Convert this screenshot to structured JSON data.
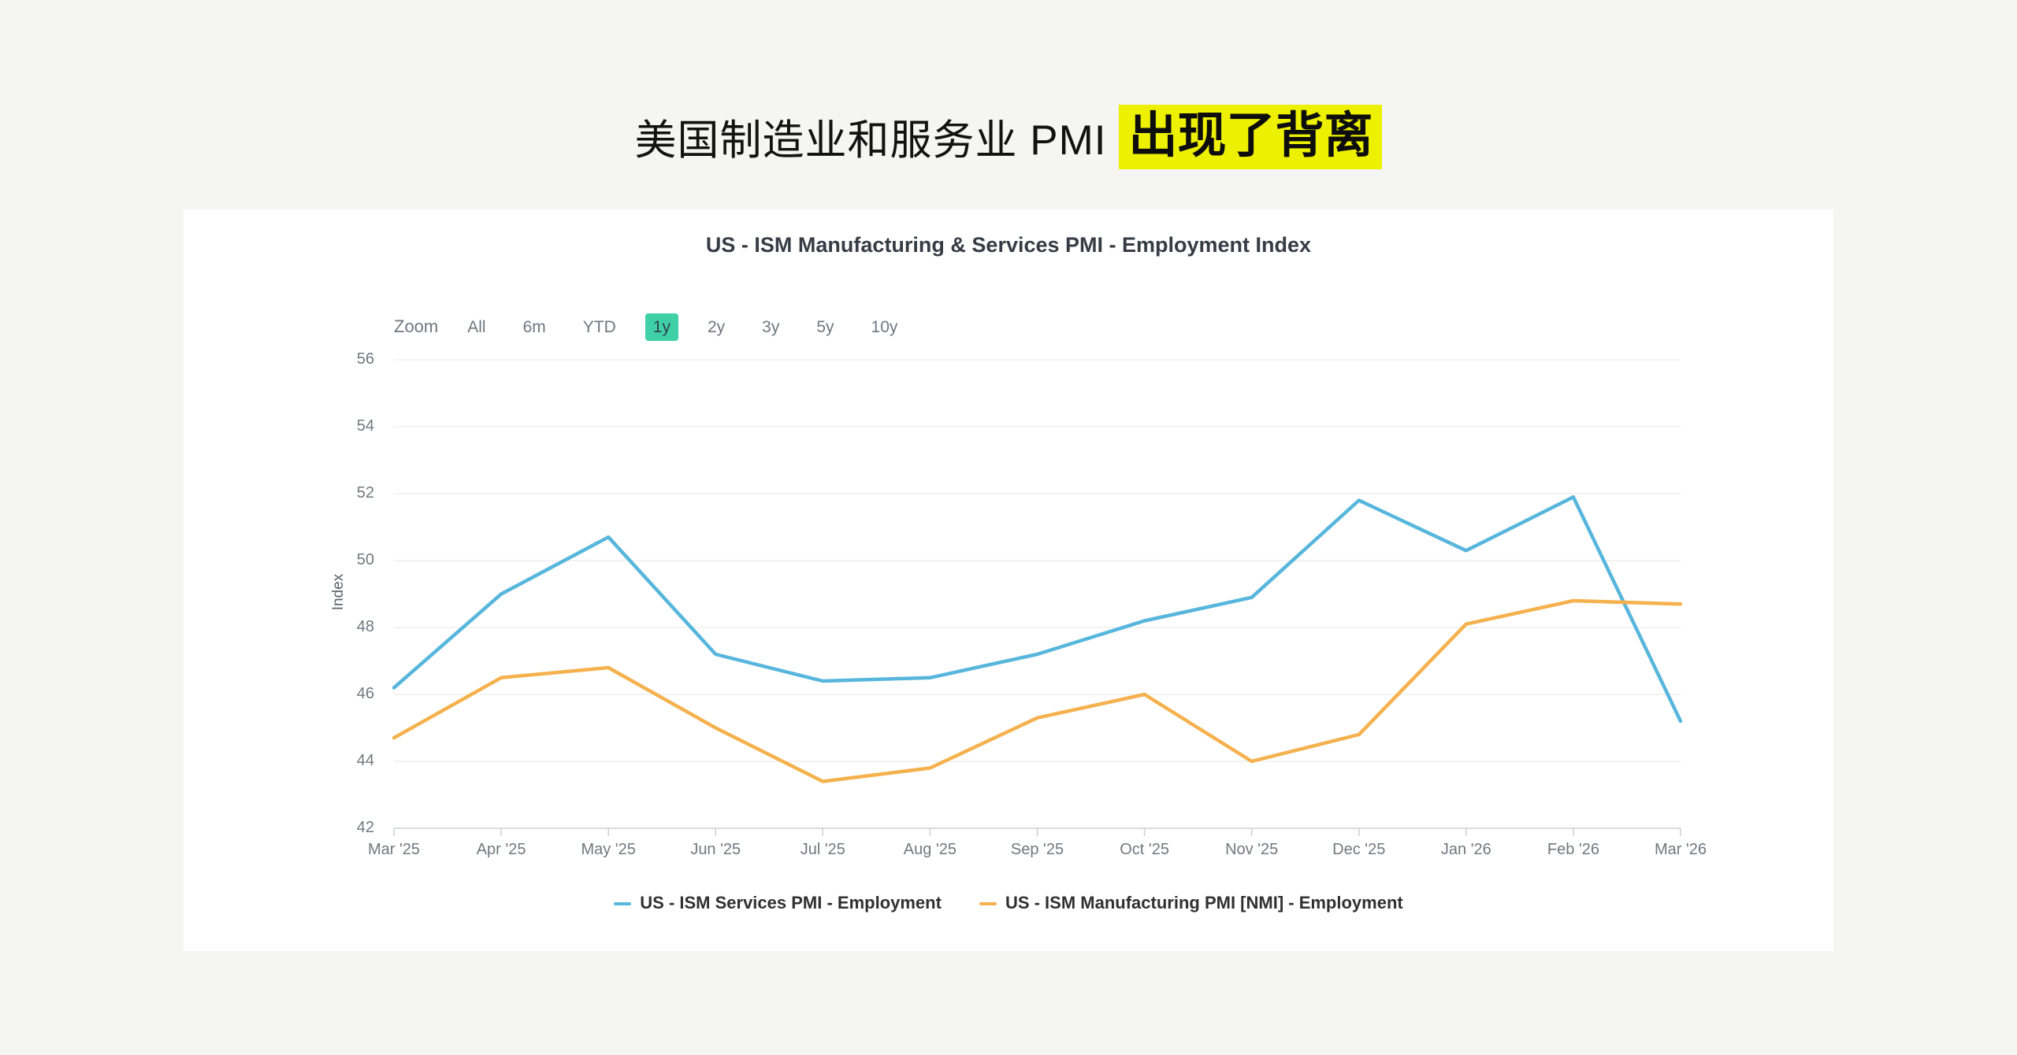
{
  "headline": {
    "text": "美国制造业和服务业 PMI",
    "highlight": "出现了背离",
    "highlight_color": "#EDF000"
  },
  "chart": {
    "title": "US - ISM Manufacturing & Services PMI - Employment Index",
    "range_selector": {
      "zoom_label": "Zoom",
      "buttons": [
        "All",
        "6m",
        "YTD",
        "1y",
        "2y",
        "3y",
        "5y",
        "10y"
      ],
      "selected": "1y",
      "selected_color": "#3FD0A7"
    },
    "y_axis": {
      "title": "Index",
      "tick_labels": [
        "56",
        "54",
        "52",
        "50",
        "48",
        "46",
        "44",
        "42"
      ]
    },
    "x_axis": {
      "tick_labels": [
        "Mar '25",
        "Apr '25",
        "May '25",
        "Jun '25",
        "Jul '25",
        "Aug '25",
        "Sep '25",
        "Oct '25",
        "Nov '25",
        "Dec '25",
        "Jan '26",
        "Feb '26",
        "Mar '26"
      ]
    },
    "legend": [
      {
        "label": "US - ISM Services PMI - Employment",
        "color": "#57B6DC"
      },
      {
        "label": "US - ISM Manufacturing PMI [NMI] - Employment",
        "color": "#F5B14D"
      }
    ]
  },
  "chart_data": {
    "type": "line",
    "title": "US - ISM Manufacturing & Services PMI - Employment Index",
    "xlabel": "",
    "ylabel": "Index",
    "ylim": [
      42,
      56
    ],
    "y_ticks": [
      56,
      54,
      52,
      50,
      48,
      46,
      44,
      42
    ],
    "grid": true,
    "legend_position": "bottom",
    "categories": [
      "Mar '25",
      "Apr '25",
      "May '25",
      "Jun '25",
      "Jul '25",
      "Aug '25",
      "Sep '25",
      "Oct '25",
      "Nov '25",
      "Dec '25",
      "Jan '26",
      "Feb '26",
      "Mar '26"
    ],
    "series": [
      {
        "name": "US - ISM Services PMI - Employment",
        "color": "#57B6DC",
        "values": [
          46.2,
          49.0,
          50.7,
          47.2,
          46.4,
          46.5,
          47.2,
          48.2,
          48.9,
          51.8,
          50.3,
          51.9,
          45.2
        ]
      },
      {
        "name": "US - ISM Manufacturing PMI [NMI] - Employment",
        "color": "#F5B14D",
        "values": [
          44.7,
          46.5,
          46.8,
          45.0,
          43.4,
          43.8,
          45.3,
          46.0,
          44.0,
          44.8,
          48.1,
          48.8,
          48.7
        ]
      }
    ]
  }
}
